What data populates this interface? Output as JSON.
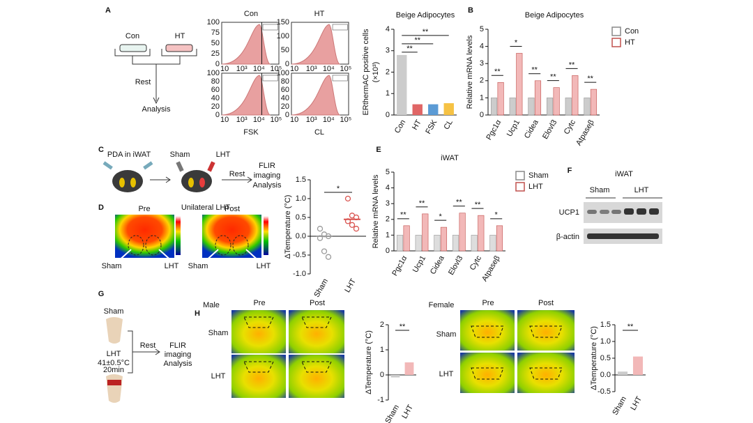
{
  "panel_labels": [
    "A",
    "B",
    "C",
    "D",
    "E",
    "F",
    "G",
    "H"
  ],
  "diagrams": {
    "a": {
      "con": "Con",
      "ht": "HT",
      "rest": "Rest",
      "analysis": "Analysis"
    },
    "histograms": {
      "titles": [
        "Con",
        "HT"
      ],
      "treatments": [
        "FSK",
        "CL"
      ],
      "xticks": [
        "10",
        "10³",
        "10⁴",
        "10⁵"
      ],
      "yticks": [
        [
          "0",
          "25",
          "50",
          "75",
          "100"
        ],
        [
          "0",
          "50",
          "100",
          "150"
        ],
        [
          "0",
          "20",
          "40",
          "60",
          "80",
          "100"
        ],
        [
          "0",
          "20",
          "40",
          "60",
          "80",
          "100"
        ]
      ]
    },
    "c": {
      "pda": "PDA in iWAT",
      "sham": "Sham",
      "lht": "LHT",
      "rest": "Rest",
      "flir": "FLIR",
      "imaging": "imaging",
      "analysis": "Analysis"
    },
    "d": {
      "pre": "Pre",
      "post": "Post",
      "title": "Unilateral LHT",
      "sham": "Sham",
      "lht": "LHT"
    },
    "f": {
      "title": "iWAT",
      "sham": "Sham",
      "lht": "LHT",
      "ucp1": "UCP1",
      "actin": "β-actin"
    },
    "g": {
      "sham": "Sham",
      "lht": "LHT",
      "temp": "41±0.5°C",
      "time": "20min",
      "rest": "Rest",
      "flir": "FLIR",
      "imaging": "imaging",
      "analysis": "Analysis"
    },
    "h": {
      "male": "Male",
      "female": "Female",
      "pre": "Pre",
      "post": "Post",
      "sham": "Sham",
      "lht": "LHT"
    }
  },
  "chart_data": [
    {
      "type": "bar",
      "title": "Beige Adipocytes",
      "ylabel": "ERthermAC positive cells",
      "ylabel_unit": "(×10³)",
      "categories": [
        "Con",
        "HT",
        "FSK",
        "CL"
      ],
      "values": [
        2.8,
        0.5,
        0.5,
        0.55
      ],
      "colors": [
        "#cccccc",
        "#e06666",
        "#5b9bd5",
        "#f6c244"
      ],
      "ylim": [
        0,
        4
      ],
      "yticks": [
        0,
        1,
        2,
        3,
        4
      ],
      "annotations": [
        "**",
        "**",
        "**"
      ]
    },
    {
      "type": "grouped_bar",
      "title": "Beige Adipocytes",
      "ylabel": "Relative mRNA levels",
      "categories": [
        "Pgc1α",
        "Ucp1",
        "Cidea",
        "Elovl3",
        "Cytc",
        "Atpaseβ"
      ],
      "series": [
        {
          "name": "Con",
          "color": "#cccccc",
          "values": [
            1,
            1,
            1,
            1,
            1,
            1
          ]
        },
        {
          "name": "HT",
          "color": "#f2b8b8",
          "values": [
            1.9,
            3.6,
            2.0,
            1.6,
            2.3,
            1.5
          ]
        }
      ],
      "ylim": [
        0,
        5
      ],
      "yticks": [
        0,
        1,
        2,
        3,
        4,
        5
      ],
      "annotations": [
        "**",
        "*",
        "**",
        "**",
        "**",
        "**"
      ]
    },
    {
      "type": "scatter",
      "ylabel": "ΔTemperature (°C)",
      "categories": [
        "Sham",
        "LHT"
      ],
      "series": [
        {
          "name": "Sham",
          "color": "#999999",
          "values": [
            0.2,
            0.05,
            0.0,
            -0.05,
            -0.4,
            -0.55
          ]
        },
        {
          "name": "LHT",
          "color": "#d9534f",
          "values": [
            1.0,
            0.55,
            0.5,
            0.4,
            0.3,
            0.2
          ]
        }
      ],
      "means": [
        0.0,
        0.45
      ],
      "ylim": [
        -1,
        1.5
      ],
      "yticks": [
        {
          "value": -1,
          "label": "-1.0"
        },
        -0.5,
        {
          "value": 0,
          "label": "0.0"
        },
        0.5,
        {
          "value": 1,
          "label": "1.0"
        },
        1.5
      ],
      "annotations": [
        "*"
      ]
    },
    {
      "type": "grouped_bar",
      "title": "iWAT",
      "ylabel": "Relative mRNA levels",
      "categories": [
        "Pgc1α",
        "Ucp1",
        "Cidea",
        "Elovl3",
        "Cytc",
        "Atpaseβ"
      ],
      "series": [
        {
          "name": "Sham",
          "color": "#dddddd",
          "values": [
            1,
            1,
            1,
            1,
            1,
            1
          ]
        },
        {
          "name": "LHT",
          "color": "#f2b8b8",
          "values": [
            1.6,
            2.35,
            1.5,
            2.4,
            2.25,
            1.6
          ]
        }
      ],
      "ylim": [
        0,
        5
      ],
      "yticks": [
        0,
        1,
        2,
        3,
        4,
        5
      ],
      "annotations": [
        "**",
        "**",
        "*",
        "**",
        "**",
        "*"
      ]
    },
    {
      "type": "bar",
      "ylabel": "ΔTemperature (°C)",
      "categories": [
        "Sham",
        "LHT"
      ],
      "values": [
        -0.1,
        0.5
      ],
      "colors": [
        "#cccccc",
        "#f2b8b8"
      ],
      "ylim": [
        -1,
        2
      ],
      "yticks": [
        -1,
        0,
        1,
        2
      ],
      "annotations": [
        "**"
      ]
    },
    {
      "type": "bar",
      "ylabel": "ΔTemperature (°C)",
      "categories": [
        "Sham",
        "LHT"
      ],
      "values": [
        0.1,
        0.55
      ],
      "colors": [
        "#cccccc",
        "#f2b8b8"
      ],
      "ylim": [
        -0.5,
        1.5
      ],
      "yticks": [
        -0.5,
        {
          "value": 0,
          "label": "0.0"
        },
        0.5,
        {
          "value": 1,
          "label": "1.0"
        },
        1.5
      ],
      "annotations": [
        "**"
      ]
    }
  ]
}
